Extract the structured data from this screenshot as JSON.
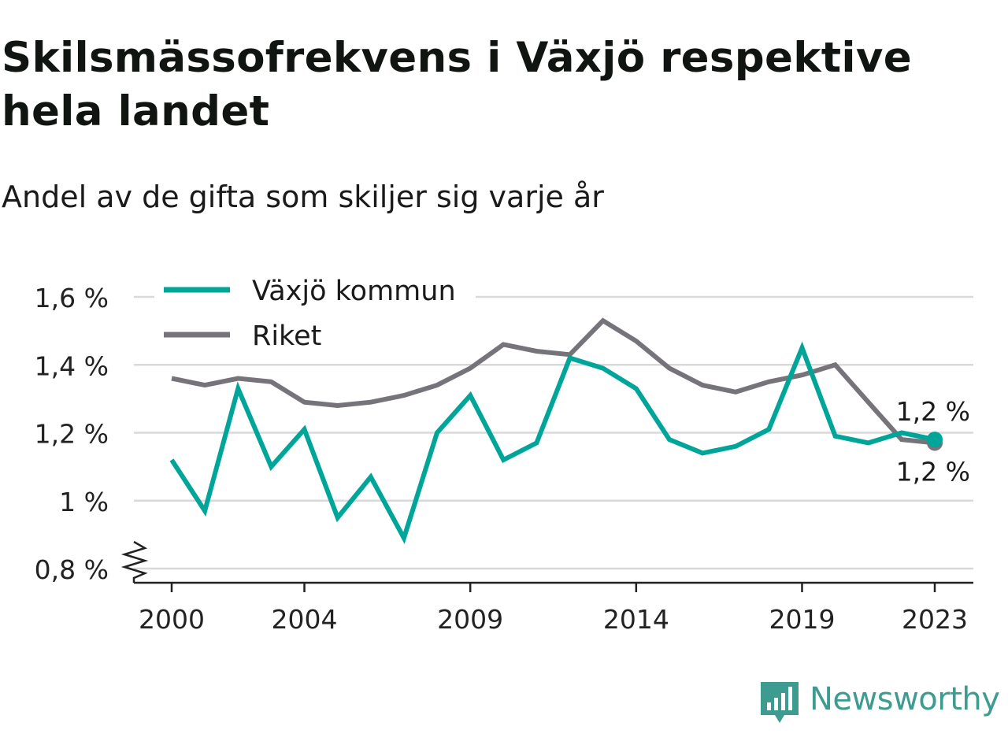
{
  "title": "Skilsmässofrekvens i Växjö respektive hela landet",
  "subtitle": "Andel av de gifta som skiljer sig varje år",
  "brand": {
    "name": "Newsworthy",
    "color": "#3d9b8f",
    "icon": "newsworthy-logo-icon"
  },
  "chart_data": {
    "type": "line",
    "title": "Skilsmässofrekvens i Växjö respektive hela landet",
    "subtitle": "Andel av de gifta som skiljer sig varje år",
    "xlabel": "",
    "ylabel": "",
    "x": [
      2000,
      2001,
      2002,
      2003,
      2004,
      2005,
      2006,
      2007,
      2008,
      2009,
      2010,
      2011,
      2012,
      2013,
      2014,
      2015,
      2016,
      2017,
      2018,
      2019,
      2020,
      2021,
      2022,
      2023
    ],
    "x_ticks": [
      2000,
      2004,
      2009,
      2014,
      2019,
      2023
    ],
    "x_tick_labels": [
      "2000",
      "2004",
      "2009",
      "2014",
      "2019",
      "2023"
    ],
    "ylim": [
      0.8,
      1.6
    ],
    "y_ticks": [
      0.8,
      1.0,
      1.2,
      1.4,
      1.6
    ],
    "y_tick_labels": [
      "0,8 %",
      "1 %",
      "1,2 %",
      "1,4 %",
      "1,6 %"
    ],
    "y_axis_break": true,
    "grid": "horizontal",
    "legend_position": "top-left",
    "series": [
      {
        "name": "Växjö kommun",
        "color": "#00a59a",
        "values": [
          1.12,
          0.97,
          1.33,
          1.1,
          1.21,
          0.95,
          1.07,
          0.89,
          1.2,
          1.31,
          1.12,
          1.17,
          1.42,
          1.39,
          1.33,
          1.18,
          1.14,
          1.16,
          1.21,
          1.45,
          1.19,
          1.17,
          1.2,
          1.18
        ],
        "end_label": "1,2 %"
      },
      {
        "name": "Riket",
        "color": "#76737a",
        "values": [
          1.36,
          1.34,
          1.36,
          1.35,
          1.29,
          1.28,
          1.29,
          1.31,
          1.34,
          1.39,
          1.46,
          1.44,
          1.43,
          1.53,
          1.47,
          1.39,
          1.34,
          1.32,
          1.35,
          1.37,
          1.4,
          1.29,
          1.18,
          1.17
        ],
        "end_label": "1,2 %"
      }
    ],
    "colors": {
      "grid": "#d9d9d9",
      "axis": "#222222",
      "tick_label": "#222222"
    }
  }
}
